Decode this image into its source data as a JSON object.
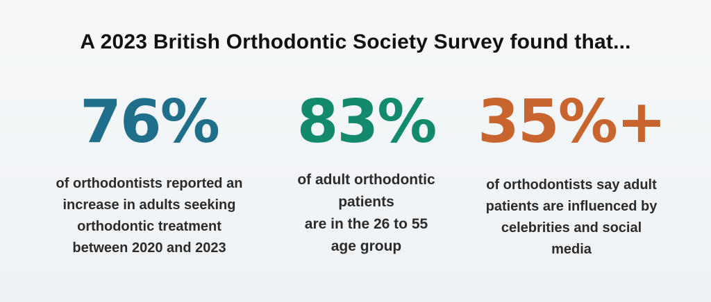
{
  "title": "A 2023 British Orthodontic Society Survey found that...",
  "colors": {
    "stat1": "#1f6f8b",
    "stat2": "#138a6b",
    "stat3": "#c8642e"
  },
  "stats": [
    {
      "value": "76%",
      "lines": [
        "of orthodontists reported an",
        "increase in adults seeking",
        "orthodontic treatment",
        "between 2020 and 2023"
      ]
    },
    {
      "value": "83%",
      "lines": [
        "of adult orthodontic",
        "patients",
        "are in the 26 to 55",
        "age group"
      ]
    },
    {
      "value": "35%+",
      "lines": [
        "of orthodontists say adult",
        "patients are influenced by",
        "celebrities and social",
        "media"
      ]
    }
  ]
}
